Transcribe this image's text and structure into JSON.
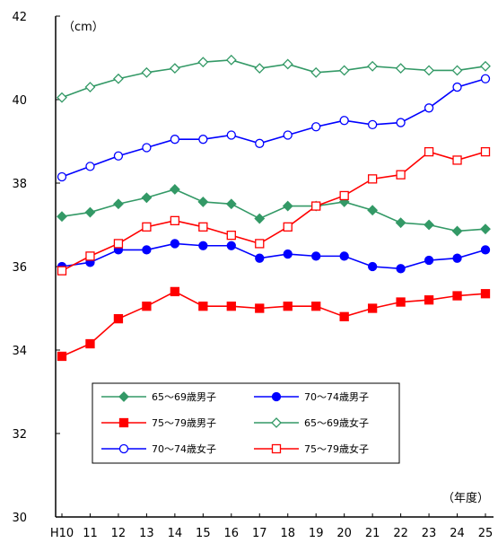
{
  "chart_data": {
    "type": "line",
    "y_unit_label": "（cm）",
    "x_unit_label": "（年度）",
    "categories": [
      "H10",
      "11",
      "12",
      "13",
      "14",
      "15",
      "16",
      "17",
      "18",
      "19",
      "20",
      "21",
      "22",
      "23",
      "24",
      "25"
    ],
    "ylim": [
      30,
      42
    ],
    "yticks": [
      "30",
      "32",
      "34",
      "36",
      "38",
      "40",
      "42"
    ],
    "grid": false,
    "legend_position": "lower-middle",
    "series": [
      {
        "name": "65～69歳男子",
        "color": "#339966",
        "marker": "diamond",
        "filled": true,
        "values": [
          37.2,
          37.3,
          37.5,
          37.65,
          37.85,
          37.55,
          37.5,
          37.15,
          37.45,
          37.45,
          37.55,
          37.35,
          37.05,
          37.0,
          36.85,
          36.9
        ]
      },
      {
        "name": "70～74歳男子",
        "color": "#0000ff",
        "marker": "circle",
        "filled": true,
        "values": [
          36.0,
          36.1,
          36.4,
          36.4,
          36.55,
          36.5,
          36.5,
          36.2,
          36.3,
          36.25,
          36.25,
          36.0,
          35.95,
          36.15,
          36.2,
          36.4
        ]
      },
      {
        "name": "75～79歳男子",
        "color": "#ff0000",
        "marker": "square",
        "filled": true,
        "values": [
          33.85,
          34.15,
          34.75,
          35.05,
          35.4,
          35.05,
          35.05,
          35.0,
          35.05,
          35.05,
          34.8,
          35.0,
          35.15,
          35.2,
          35.3,
          35.35
        ]
      },
      {
        "name": "65～69歳女子",
        "color": "#339966",
        "marker": "diamond",
        "filled": false,
        "values": [
          40.05,
          40.3,
          40.5,
          40.65,
          40.75,
          40.9,
          40.95,
          40.75,
          40.85,
          40.65,
          40.7,
          40.8,
          40.75,
          40.7,
          40.7,
          40.8
        ]
      },
      {
        "name": "70～74歳女子",
        "color": "#0000ff",
        "marker": "circle",
        "filled": false,
        "values": [
          38.15,
          38.4,
          38.65,
          38.85,
          39.05,
          39.05,
          39.15,
          38.95,
          39.15,
          39.35,
          39.5,
          39.4,
          39.45,
          39.8,
          40.3,
          40.5
        ]
      },
      {
        "name": "75～79歳女子",
        "color": "#ff0000",
        "marker": "square",
        "filled": false,
        "values": [
          35.9,
          36.25,
          36.55,
          36.95,
          37.1,
          36.95,
          36.75,
          36.55,
          36.95,
          37.45,
          37.7,
          38.1,
          38.2,
          38.75,
          38.55,
          38.75
        ]
      }
    ]
  }
}
